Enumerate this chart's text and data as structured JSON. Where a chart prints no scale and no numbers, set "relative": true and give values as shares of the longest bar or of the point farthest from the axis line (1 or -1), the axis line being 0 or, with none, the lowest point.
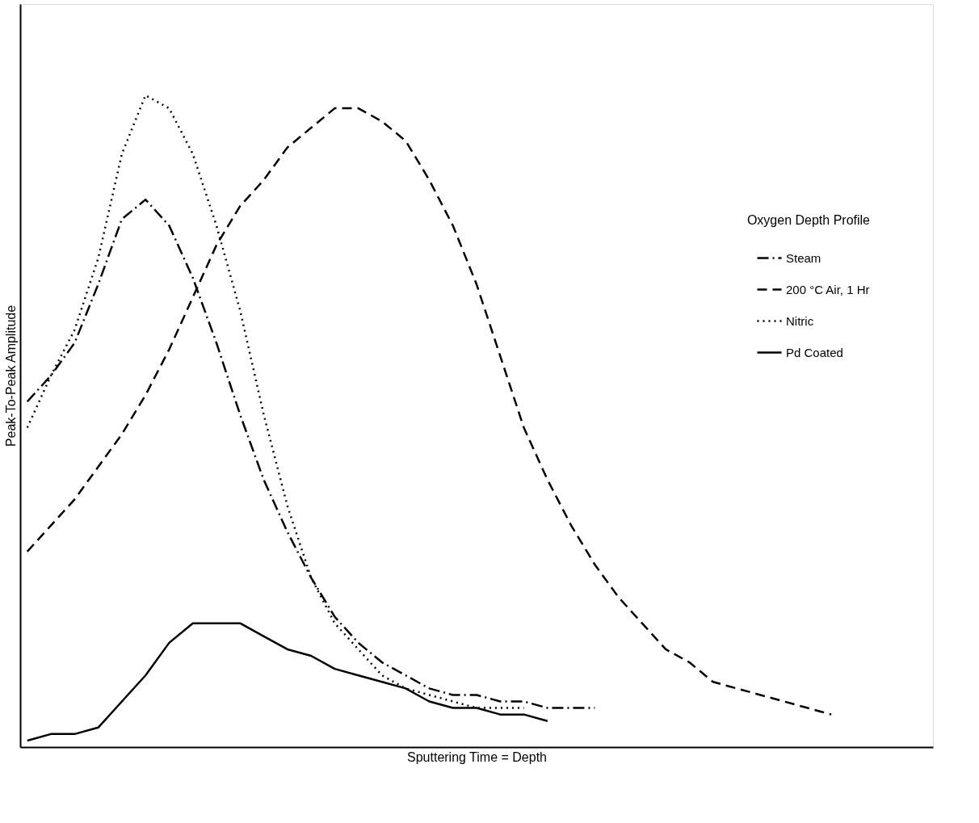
{
  "chart_data": {
    "type": "line",
    "relative": true,
    "xlabel": "Sputtering Time = Depth",
    "ylabel": "Peak-To-Peak Amplitude",
    "legend_title": "Oxygen Depth Profile",
    "legend": "right",
    "tick_labels": false,
    "grid": false,
    "marker": "none",
    "categories": [
      null,
      null,
      null,
      null,
      null,
      null,
      null,
      null,
      null,
      null,
      null,
      null,
      null,
      null,
      null,
      null,
      null,
      null,
      null,
      null,
      null,
      null,
      null,
      null,
      null,
      null,
      null,
      null,
      null,
      null,
      null,
      null,
      null,
      null,
      null,
      null,
      null,
      null,
      null
    ],
    "series": [
      {
        "name": "Steam",
        "color": "#000000",
        "line_style": "dashdot",
        "values": [
          0.53,
          0.57,
          0.62,
          0.71,
          0.81,
          0.84,
          0.8,
          0.72,
          0.62,
          0.51,
          0.41,
          0.33,
          0.26,
          0.2,
          0.16,
          0.13,
          0.11,
          0.09,
          0.08,
          0.08,
          0.07,
          0.07,
          0.06,
          0.06,
          0.06,
          null,
          null,
          null,
          null,
          null,
          null,
          null,
          null,
          null,
          null,
          null,
          null,
          null,
          null
        ]
      },
      {
        "name": "200 °C Air, 1 Hr",
        "color": "#000000",
        "line_style": "dashed",
        "values": [
          0.3,
          0.34,
          0.38,
          0.43,
          0.48,
          0.54,
          0.61,
          0.69,
          0.77,
          0.83,
          0.87,
          0.92,
          0.95,
          0.98,
          0.98,
          0.96,
          0.93,
          0.87,
          0.8,
          0.71,
          0.6,
          0.49,
          0.41,
          0.34,
          0.28,
          0.23,
          0.19,
          0.15,
          0.13,
          0.1,
          0.09,
          0.08,
          0.07,
          0.06,
          0.05,
          null,
          null,
          null,
          null
        ]
      },
      {
        "name": "Nitric",
        "color": "#000000",
        "line_style": "dotted",
        "values": [
          0.49,
          0.57,
          0.64,
          0.75,
          0.91,
          1.0,
          0.98,
          0.91,
          0.8,
          0.67,
          0.51,
          0.37,
          0.26,
          0.19,
          0.15,
          0.11,
          0.09,
          0.08,
          0.07,
          0.06,
          0.06,
          0.06,
          null,
          null,
          null,
          null,
          null,
          null,
          null,
          null,
          null,
          null,
          null,
          null,
          null,
          null,
          null,
          null,
          null
        ]
      },
      {
        "name": "Pd Coated",
        "color": "#000000",
        "line_style": "solid",
        "values": [
          0.01,
          0.02,
          0.02,
          0.03,
          0.07,
          0.11,
          0.16,
          0.19,
          0.19,
          0.19,
          0.17,
          0.15,
          0.14,
          0.12,
          0.11,
          0.1,
          0.09,
          0.07,
          0.06,
          0.06,
          0.05,
          0.05,
          0.04,
          null,
          null,
          null,
          null,
          null,
          null,
          null,
          null,
          null,
          null,
          null,
          null,
          null,
          null,
          null,
          null
        ]
      }
    ]
  }
}
